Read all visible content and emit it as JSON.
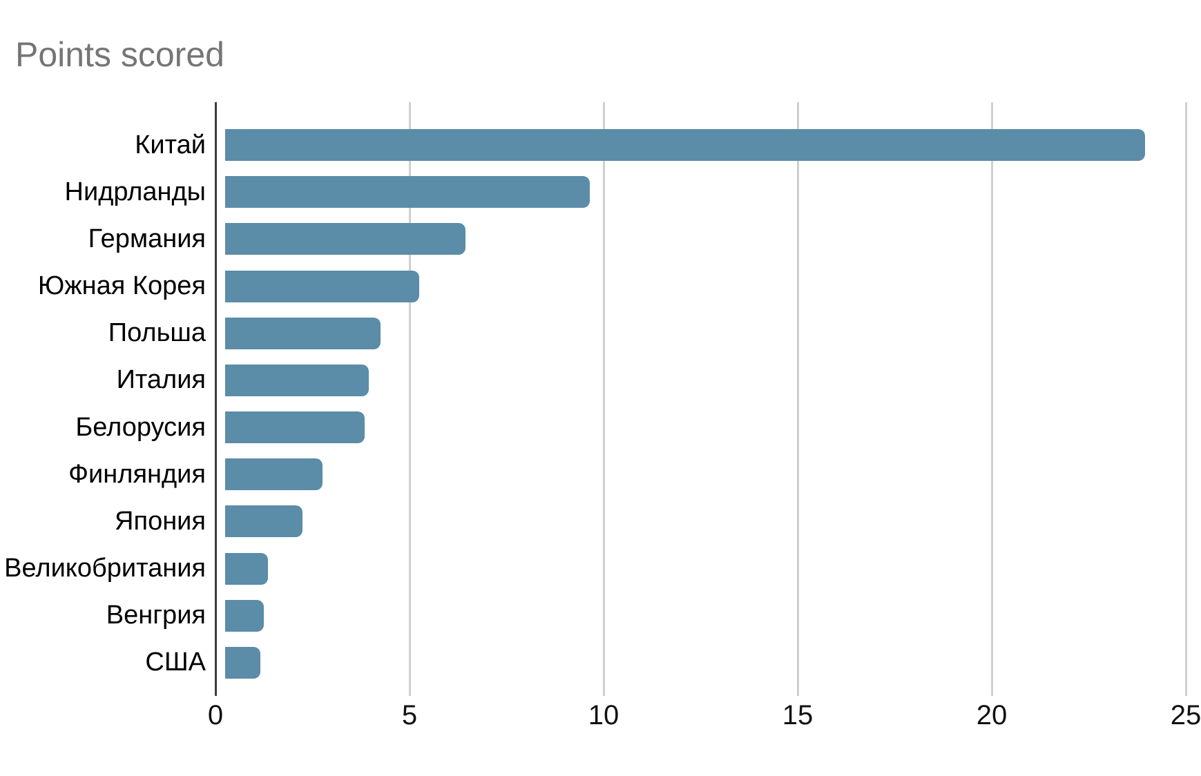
{
  "title": "Points scored",
  "colors": {
    "bar": "#5b8ca8",
    "title_text": "#757575",
    "gridline": "#cfcfcf",
    "axis_line": "#3c3c3c",
    "tick_text": "#111111",
    "label_text": "#000000",
    "background": "#ffffff"
  },
  "chart_data": {
    "type": "bar",
    "orientation": "horizontal",
    "title": "Points scored",
    "xlabel": "",
    "ylabel": "",
    "categories": [
      "Китай",
      "Нидрланды",
      "Германия",
      "Южная Корея",
      "Польша",
      "Италия",
      "Белорусия",
      "Финляндия",
      "Япония",
      "Великобритания",
      "Венгрия",
      "США"
    ],
    "values": [
      23.7,
      9.4,
      6.2,
      5,
      4,
      3.7,
      3.6,
      2.5,
      2,
      1.1,
      1,
      0.9
    ],
    "xlim": [
      0,
      25
    ],
    "xticks": [
      0,
      5,
      10,
      15,
      20,
      25
    ],
    "grid": true,
    "legend": false
  }
}
